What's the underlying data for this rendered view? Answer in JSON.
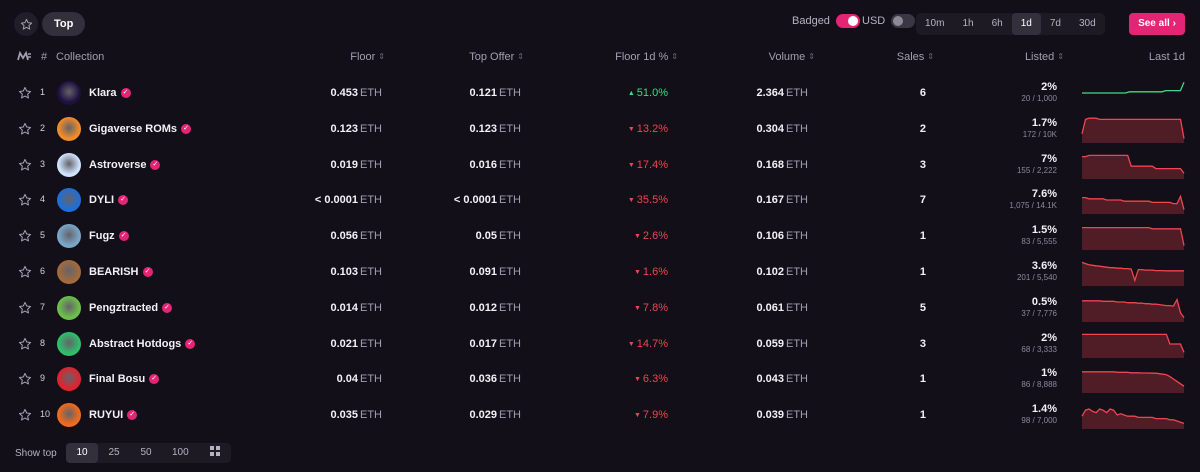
{
  "toolbar": {
    "top_label": "Top",
    "badged_label": "Badged",
    "usd_label": "USD",
    "timeframes": [
      "10m",
      "1h",
      "6h",
      "1d",
      "7d",
      "30d"
    ],
    "active_timeframe": "1d",
    "see_all_label": "See all",
    "accent": "#e42575"
  },
  "header": {
    "hash": "#",
    "collection": "Collection",
    "floor": "Floor",
    "top_offer": "Top Offer",
    "floor_change": "Floor 1d %",
    "volume": "Volume",
    "sales": "Sales",
    "listed": "Listed",
    "last": "Last 1d"
  },
  "unit": "ETH",
  "rows": [
    {
      "rank": "1",
      "name": "Klara",
      "floor": "0.453",
      "offer": "0.121",
      "change": "51.0%",
      "dir": "up",
      "volume": "2.364",
      "sales": "6",
      "listed_pct": "2%",
      "listed_sub": "20 / 1,000",
      "avatar_color": "#1b1040",
      "spark": [
        0.5,
        0.5,
        0.5,
        0.5,
        0.5,
        0.5,
        0.5,
        0.5,
        0.5,
        0.5,
        0.5,
        0.5,
        0.5,
        0.55,
        0.55,
        0.55,
        0.55,
        0.55,
        0.55,
        0.55,
        0.55,
        0.55,
        0.55,
        0.6,
        0.6,
        0.6,
        0.6,
        0.6,
        0.95
      ]
    },
    {
      "rank": "2",
      "name": "Gigaverse ROMs",
      "floor": "0.123",
      "offer": "0.123",
      "change": "13.2%",
      "dir": "down",
      "volume": "0.304",
      "sales": "2",
      "listed_pct": "1.7%",
      "listed_sub": "172 / 10K",
      "avatar_color": "#f28c28",
      "spark": [
        0.3,
        0.9,
        0.95,
        0.95,
        0.95,
        0.9,
        0.9,
        0.9,
        0.9,
        0.9,
        0.9,
        0.9,
        0.9,
        0.9,
        0.9,
        0.9,
        0.9,
        0.9,
        0.9,
        0.9,
        0.9,
        0.9,
        0.9,
        0.9,
        0.9,
        0.9,
        0.9,
        0.9,
        0.9,
        0.1
      ]
    },
    {
      "rank": "3",
      "name": "Astroverse",
      "floor": "0.019",
      "offer": "0.016",
      "change": "17.4%",
      "dir": "down",
      "volume": "0.168",
      "sales": "3",
      "listed_pct": "7%",
      "listed_sub": "155 / 2,222",
      "avatar_color": "#cfe3ff",
      "spark": [
        0.85,
        0.85,
        0.9,
        0.9,
        0.9,
        0.9,
        0.9,
        0.9,
        0.9,
        0.9,
        0.9,
        0.9,
        0.9,
        0.9,
        0.45,
        0.45,
        0.45,
        0.45,
        0.45,
        0.45,
        0.45,
        0.35,
        0.35,
        0.35,
        0.35,
        0.35,
        0.35,
        0.35,
        0.35,
        0.15
      ]
    },
    {
      "rank": "4",
      "name": "DYLI",
      "floor": "< 0.0001",
      "offer": "< 0.0001",
      "change": "35.5%",
      "dir": "down",
      "volume": "0.167",
      "sales": "7",
      "listed_pct": "7.6%",
      "listed_sub": "1,075 / 14.1K",
      "avatar_color": "#1e6fd9",
      "spark": [
        0.6,
        0.6,
        0.55,
        0.55,
        0.55,
        0.55,
        0.55,
        0.5,
        0.5,
        0.5,
        0.5,
        0.5,
        0.45,
        0.45,
        0.45,
        0.45,
        0.45,
        0.45,
        0.45,
        0.45,
        0.4,
        0.4,
        0.4,
        0.4,
        0.4,
        0.4,
        0.35,
        0.35,
        0.65,
        0.1
      ]
    },
    {
      "rank": "5",
      "name": "Fugz",
      "floor": "0.056",
      "offer": "0.05",
      "change": "2.6%",
      "dir": "down",
      "volume": "0.106",
      "sales": "1",
      "listed_pct": "1.5%",
      "listed_sub": "83 / 5,555",
      "avatar_color": "#7aa6c9",
      "spark": [
        0.85,
        0.85,
        0.85,
        0.85,
        0.85,
        0.85,
        0.85,
        0.85,
        0.85,
        0.85,
        0.85,
        0.85,
        0.85,
        0.85,
        0.85,
        0.85,
        0.85,
        0.85,
        0.85,
        0.85,
        0.8,
        0.8,
        0.8,
        0.8,
        0.8,
        0.8,
        0.8,
        0.8,
        0.8,
        0.1
      ]
    },
    {
      "rank": "6",
      "name": "BEARISH",
      "floor": "0.103",
      "offer": "0.091",
      "change": "1.6%",
      "dir": "down",
      "volume": "0.102",
      "sales": "1",
      "listed_pct": "3.6%",
      "listed_sub": "201 / 5,540",
      "avatar_color": "#a36a3b",
      "spark": [
        0.9,
        0.85,
        0.8,
        0.78,
        0.76,
        0.74,
        0.72,
        0.7,
        0.68,
        0.68,
        0.66,
        0.66,
        0.64,
        0.64,
        0.62,
        0.15,
        0.6,
        0.6,
        0.58,
        0.58,
        0.58,
        0.56,
        0.56,
        0.56,
        0.55,
        0.55,
        0.55,
        0.55,
        0.55,
        0.55
      ]
    },
    {
      "rank": "7",
      "name": "Pengztracted",
      "floor": "0.014",
      "offer": "0.012",
      "change": "7.8%",
      "dir": "down",
      "volume": "0.061",
      "sales": "5",
      "listed_pct": "0.5%",
      "listed_sub": "37 / 7,776",
      "avatar_color": "#6cc04a",
      "spark": [
        0.8,
        0.8,
        0.8,
        0.8,
        0.8,
        0.8,
        0.78,
        0.78,
        0.78,
        0.78,
        0.75,
        0.75,
        0.75,
        0.72,
        0.72,
        0.72,
        0.7,
        0.7,
        0.68,
        0.68,
        0.66,
        0.66,
        0.64,
        0.62,
        0.6,
        0.6,
        0.58,
        0.85,
        0.3,
        0.1
      ]
    },
    {
      "rank": "8",
      "name": "Abstract Hotdogs",
      "floor": "0.021",
      "offer": "0.017",
      "change": "14.7%",
      "dir": "down",
      "volume": "0.059",
      "sales": "3",
      "listed_pct": "2%",
      "listed_sub": "68 / 3,333",
      "avatar_color": "#2fbf6b",
      "spark": [
        0.9,
        0.9,
        0.9,
        0.9,
        0.9,
        0.9,
        0.9,
        0.9,
        0.9,
        0.9,
        0.9,
        0.9,
        0.9,
        0.9,
        0.9,
        0.9,
        0.9,
        0.9,
        0.9,
        0.9,
        0.9,
        0.9,
        0.9,
        0.9,
        0.9,
        0.5,
        0.5,
        0.5,
        0.5,
        0.15
      ]
    },
    {
      "rank": "9",
      "name": "Final Bosu",
      "floor": "0.04",
      "offer": "0.036",
      "change": "6.3%",
      "dir": "down",
      "volume": "0.043",
      "sales": "1",
      "listed_pct": "1%",
      "listed_sub": "86 / 8,888",
      "avatar_color": "#e0232e",
      "spark": [
        0.8,
        0.8,
        0.8,
        0.8,
        0.8,
        0.8,
        0.8,
        0.8,
        0.8,
        0.8,
        0.78,
        0.78,
        0.78,
        0.78,
        0.76,
        0.76,
        0.76,
        0.75,
        0.75,
        0.75,
        0.74,
        0.74,
        0.72,
        0.7,
        0.68,
        0.6,
        0.5,
        0.4,
        0.3,
        0.2
      ]
    },
    {
      "rank": "10",
      "name": "RUYUI",
      "floor": "0.035",
      "offer": "0.029",
      "change": "7.9%",
      "dir": "down",
      "volume": "0.039",
      "sales": "1",
      "listed_pct": "1.4%",
      "listed_sub": "98 / 7,000",
      "avatar_color": "#f26a1b",
      "spark": [
        0.45,
        0.7,
        0.75,
        0.65,
        0.6,
        0.75,
        0.7,
        0.6,
        0.75,
        0.7,
        0.5,
        0.55,
        0.5,
        0.45,
        0.45,
        0.45,
        0.4,
        0.4,
        0.4,
        0.4,
        0.4,
        0.35,
        0.35,
        0.35,
        0.35,
        0.3,
        0.3,
        0.25,
        0.2,
        0.15
      ]
    }
  ],
  "footer": {
    "show_top_label": "Show top",
    "options": [
      "10",
      "25",
      "50",
      "100"
    ],
    "active": "10"
  }
}
